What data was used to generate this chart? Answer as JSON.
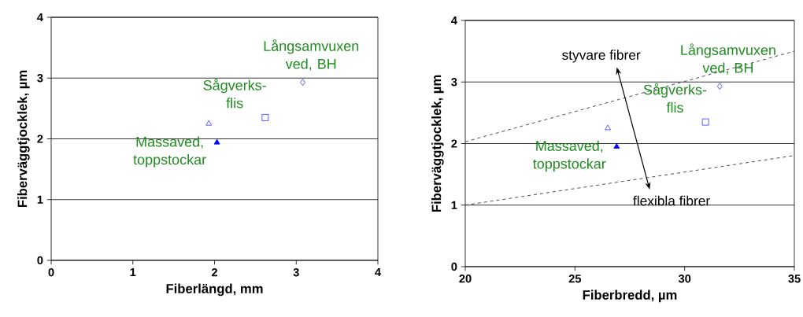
{
  "chart_data": [
    {
      "type": "scatter",
      "xlabel": "Fiberlängd, mm",
      "ylabel": "Fiberväggtjocklek, µm",
      "xlim": [
        0,
        4
      ],
      "xticks": [
        0,
        1,
        2,
        3,
        4
      ],
      "ylim": [
        0,
        4
      ],
      "yticks": [
        0,
        1,
        2,
        3,
        4
      ],
      "grid": "y",
      "series": [
        {
          "color": "#3333ff",
          "marker": "triangle",
          "x": [
            1.93
          ],
          "values": [
            2.25
          ]
        },
        {
          "name": "Massaved, toppstockar",
          "color": "#0000ff",
          "marker": "triangle",
          "x": [
            2.03
          ],
          "values": [
            1.94
          ]
        },
        {
          "name": "Sågverks-flis",
          "color": "#3333ff",
          "marker": "square",
          "x": [
            2.62
          ],
          "values": [
            2.35
          ]
        },
        {
          "name": "Långsamvuxen ved, BH",
          "color": "#3333ff",
          "marker": "diamond",
          "x": [
            3.08
          ],
          "values": [
            2.93
          ]
        }
      ]
    },
    {
      "type": "scatter",
      "xlabel": "Fiberbredd, µm",
      "ylabel": "Fiberväggtjocklek, µm",
      "xlim": [
        20,
        35
      ],
      "xticks": [
        20,
        25,
        30,
        35
      ],
      "ylim": [
        0,
        4
      ],
      "yticks": [
        0,
        1,
        2,
        3,
        4
      ],
      "grid": "y",
      "series": [
        {
          "type": "line",
          "color": "#404040",
          "line_style": "dashed",
          "marker": "none",
          "x": [
            20,
            35
          ],
          "values": [
            2.03,
            3.5
          ]
        },
        {
          "type": "line",
          "color": "#404040",
          "line_style": "dashed",
          "marker": "none",
          "x": [
            20,
            34.9
          ],
          "values": [
            1.0,
            1.8
          ]
        },
        {
          "color": "#3333ff",
          "marker": "triangle",
          "x": [
            26.5
          ],
          "values": [
            2.25
          ]
        },
        {
          "name": "Massaved, toppstockar",
          "color": "#0000ff",
          "marker": "triangle",
          "x": [
            26.9
          ],
          "values": [
            1.95
          ]
        },
        {
          "name": "Sågverks-flis",
          "color": "#3333ff",
          "marker": "square",
          "x": [
            30.95
          ],
          "values": [
            2.35
          ]
        },
        {
          "name": "Långsamvuxen ved, BH",
          "color": "#3333ff",
          "marker": "diamond",
          "x": [
            31.6
          ],
          "values": [
            2.93
          ]
        }
      ],
      "annotations": [
        "styvare fibrer",
        "flexibla fibrer"
      ]
    }
  ]
}
